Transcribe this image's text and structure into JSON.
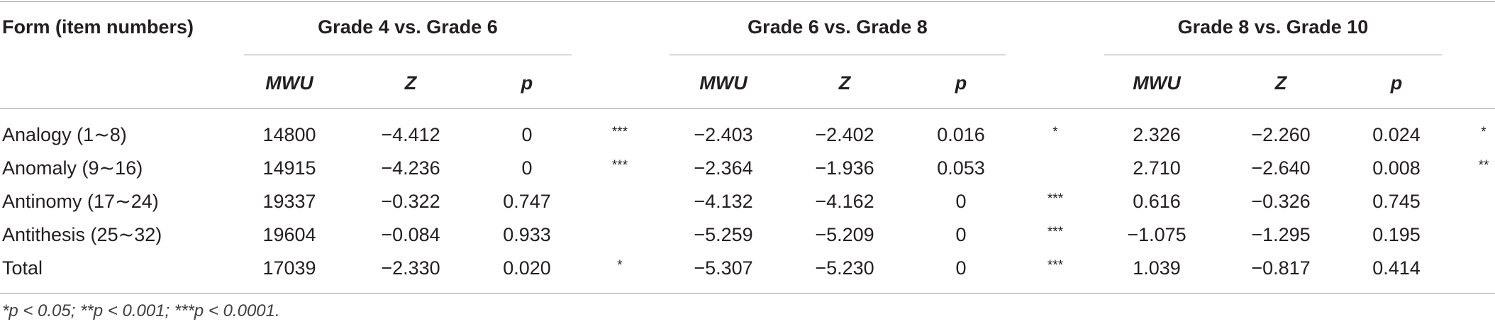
{
  "table": {
    "first_header": "Form (item numbers)",
    "groups": [
      "Grade 4 vs. Grade 6",
      "Grade 6 vs. Grade 8",
      "Grade 8 vs. Grade 10"
    ],
    "subheaders": [
      "MWU",
      "Z",
      "p"
    ],
    "rows": [
      {
        "label": "Analogy (1∼8)",
        "cells": [
          "14800",
          "−4.412",
          "0",
          "***",
          "−2.403",
          "−2.402",
          "0.016",
          "*",
          "2.326",
          "−2.260",
          "0.024",
          "*"
        ]
      },
      {
        "label": "Anomaly (9∼16)",
        "cells": [
          "14915",
          "−4.236",
          "0",
          "***",
          "−2.364",
          "−1.936",
          "0.053",
          "",
          "2.710",
          "−2.640",
          "0.008",
          "**"
        ]
      },
      {
        "label": "Antinomy (17∼24)",
        "cells": [
          "19337",
          "−0.322",
          "0.747",
          "",
          "−4.132",
          "−4.162",
          "0",
          "***",
          "0.616",
          "−0.326",
          "0.745",
          ""
        ]
      },
      {
        "label": "Antithesis (25∼32)",
        "cells": [
          "19604",
          "−0.084",
          "0.933",
          "",
          "−5.259",
          "−5.209",
          "0",
          "***",
          "−1.075",
          "−1.295",
          "0.195",
          ""
        ]
      },
      {
        "label": "Total",
        "cells": [
          "17039",
          "−2.330",
          "0.020",
          "*",
          "−5.307",
          "−5.230",
          "0",
          "***",
          "1.039",
          "−0.817",
          "0.414",
          ""
        ]
      }
    ],
    "footnote": "*p < 0.05; **p < 0.001; ***p < 0.0001."
  }
}
